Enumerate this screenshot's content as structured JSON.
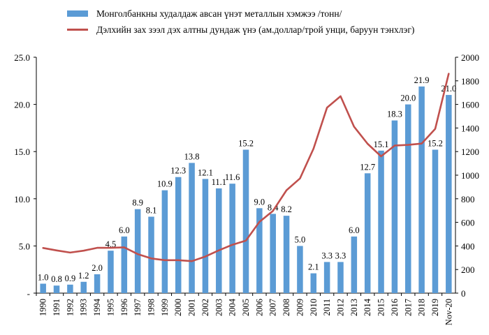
{
  "legend": {
    "bar_label": "Монголбанкны худалдаж авсан үнэт металлын хэмжээ /тонн/",
    "line_label": "Дэлхийн зах зээл дэх алтны дундаж үнэ (ам.доллар/трой унци, баруун тэнхлэг)"
  },
  "colors": {
    "bar": "#5b9bd5",
    "line": "#c0504d",
    "axis": "#000000",
    "text": "#000000"
  },
  "chart_data": {
    "type": "bar",
    "categories": [
      "1990",
      "1991",
      "1992",
      "1993",
      "1994",
      "1995",
      "1996",
      "1997",
      "1998",
      "1999",
      "2000",
      "2001",
      "2002",
      "2003",
      "2004",
      "2005",
      "2006",
      "2007",
      "2008",
      "2009",
      "2010",
      "2011",
      "2012",
      "2013",
      "2014",
      "2015",
      "2016",
      "2017",
      "2018",
      "2019",
      "Nov-20"
    ],
    "series": [
      {
        "name": "Монголбанкны худалдаж авсан үнэт металлын хэмжээ /тонн/",
        "type": "bar",
        "axis": "left",
        "values": [
          1.0,
          0.8,
          0.9,
          1.2,
          2.0,
          4.5,
          6.0,
          8.9,
          8.1,
          10.9,
          12.3,
          13.8,
          12.1,
          11.1,
          11.6,
          15.2,
          9.0,
          8.4,
          8.2,
          5.0,
          2.1,
          3.3,
          3.3,
          6.0,
          12.7,
          15.1,
          18.3,
          20.0,
          21.9,
          15.2,
          21.0
        ],
        "labels": [
          "1.0",
          "0.8",
          "0.9",
          "1.2",
          "2.0",
          "4.5",
          "6.0",
          "8.9",
          "8.1",
          "10.9",
          "12.3",
          "13.8",
          "12.1",
          "11.1",
          "11.6",
          "15.2",
          "9.0",
          "8.4",
          "8.2",
          "5.0",
          "2.1",
          "3.3",
          "3.3",
          "6.0",
          "12.7",
          "15.1",
          "18.3",
          "20.0",
          "21.9",
          "15.2",
          "21.0"
        ]
      },
      {
        "name": "Дэлхийн зах зээл дэх алтны дундаж үнэ (ам.доллар/трой унци, баруун тэнхлэг)",
        "type": "line",
        "axis": "right",
        "values": [
          383,
          362,
          344,
          360,
          384,
          384,
          388,
          331,
          294,
          279,
          279,
          271,
          310,
          363,
          410,
          445,
          604,
          697,
          872,
          972,
          1225,
          1572,
          1669,
          1411,
          1266,
          1160,
          1251,
          1257,
          1268,
          1393,
          1860
        ]
      }
    ],
    "ylim_left": [
      0,
      25
    ],
    "yticks_left": [
      "-",
      "5.0",
      "10.0",
      "15.0",
      "20.0",
      "25.0"
    ],
    "ylim_right": [
      0,
      2000
    ],
    "yticks_right": [
      "0",
      "200",
      "400",
      "600",
      "800",
      "1000",
      "1200",
      "1400",
      "1600",
      "1800",
      "2000"
    ],
    "legend_position": "top-left",
    "grid": false
  }
}
